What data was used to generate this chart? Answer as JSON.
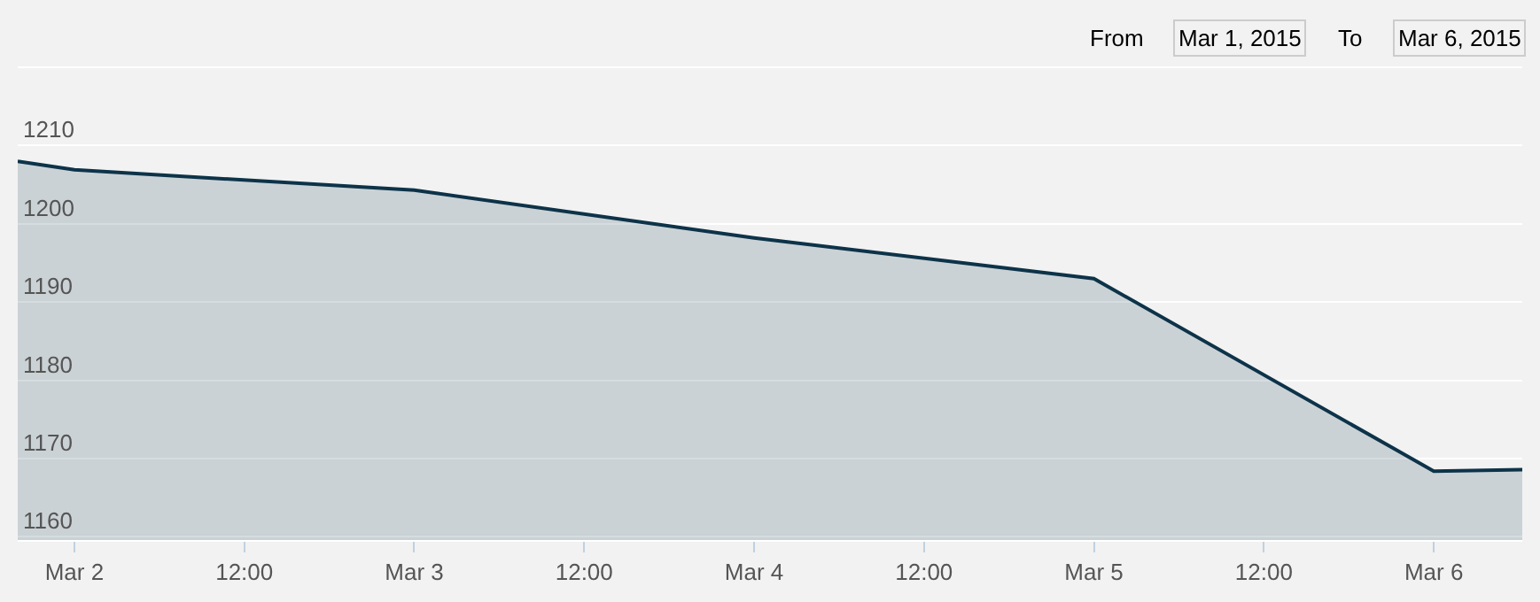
{
  "chart_data": {
    "type": "area",
    "x": [
      "2015-03-01T20:00",
      "2015-03-02",
      "2015-03-03",
      "2015-03-04",
      "2015-03-05",
      "2015-03-06",
      "2015-03-06T06:15"
    ],
    "series": [
      {
        "color": "#0d3349",
        "values": [
          1208,
          1206.9,
          1204.3,
          1198.2,
          1193,
          1168.4,
          1168.6
        ]
      }
    ],
    "xlim": [
      "2015-03-01T20:00",
      "2015-03-06T06:15"
    ],
    "xticks": [
      {
        "value": "2015-03-02",
        "label": "Mar 2"
      },
      {
        "value": "2015-03-02T12:00",
        "label": "12:00"
      },
      {
        "value": "2015-03-03",
        "label": "Mar 3"
      },
      {
        "value": "2015-03-03T12:00",
        "label": "12:00"
      },
      {
        "value": "2015-03-04",
        "label": "Mar 4"
      },
      {
        "value": "2015-03-04T12:00",
        "label": "12:00"
      },
      {
        "value": "2015-03-05",
        "label": "Mar 5"
      },
      {
        "value": "2015-03-05T12:00",
        "label": "12:00"
      },
      {
        "value": "2015-03-06",
        "label": "Mar 6"
      }
    ],
    "ylim": [
      1159.6,
      1228.6
    ],
    "yticks": [
      1160,
      1170,
      1180,
      1190,
      1200,
      1210,
      {
        "value": 1220,
        "label": null
      }
    ],
    "grid": "y",
    "marker": "none",
    "line_style": "solid",
    "annotations": [
      "From",
      "Mar 1, 2015",
      "To",
      "Mar 6, 2015"
    ]
  }
}
